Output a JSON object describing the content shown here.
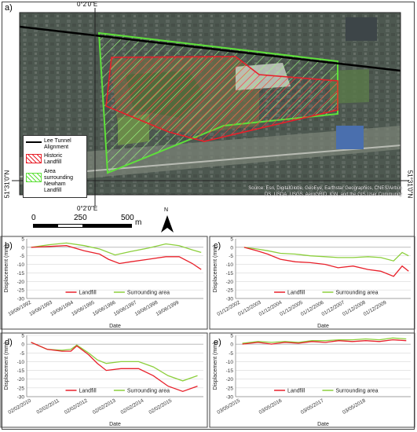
{
  "map": {
    "panel_label": "a)",
    "legend": [
      {
        "label": "Lee Tunnel Alignment",
        "lines": [
          "Lee Tunnel",
          "Alignment"
        ],
        "kind": "line",
        "color": "#000000"
      },
      {
        "label": "Historic Landfill",
        "lines": [
          "Historic",
          "Landfill"
        ],
        "kind": "hatch",
        "color": "#e8202a"
      },
      {
        "label": "Area surrounding Newham Landfill",
        "lines": [
          "Area",
          "surrounding",
          "Newham",
          "Landfill"
        ],
        "kind": "hatch",
        "color": "#5ee03a"
      }
    ],
    "source_lines": [
      "Source: Esri, DigitalGlobe, GeoEye, Earthstar Geographics, CNES/Airbus",
      "DS, USDA, USGS, AeroGRID, IGN, and the GIS User Community"
    ],
    "coord_top": "0°2'0\"E",
    "coord_bottom": "0°2'0\"E",
    "coord_left": "51°31'0\"N",
    "coord_right": "51°31'0\"N",
    "scale_ticks": [
      "0",
      "250",
      "500"
    ],
    "scale_unit": "m",
    "north_label": "N"
  },
  "chart_data": [
    {
      "panel_label": "b)",
      "type": "line",
      "xlabel": "Date",
      "ylabel": "Displacement (mm)",
      "ylim": [
        -30,
        5
      ],
      "yticks": [
        "5",
        "0",
        "-5",
        "-10",
        "-15",
        "-20",
        "-25",
        "-30"
      ],
      "xticks": [
        "19/06/1992",
        "19/06/1993",
        "19/06/1994",
        "19/06/1995",
        "19/06/1996",
        "19/06/1997",
        "19/06/1998",
        "19/06/1999"
      ],
      "xrange": [
        1992.0,
        2000.0
      ],
      "series": [
        {
          "name": "Landfill",
          "color": "#e8202a",
          "x": [
            1992.2,
            1993.0,
            1993.8,
            1994.6,
            1995.3,
            1995.7,
            1996.2,
            1996.7,
            1997.5,
            1998.3,
            1998.9,
            1999.5,
            1999.9
          ],
          "values": [
            0,
            0.5,
            1,
            -2,
            -4,
            -7,
            -9.5,
            -8.5,
            -7,
            -5.5,
            -5.5,
            -9.5,
            -13
          ]
        },
        {
          "name": "Surrounding area",
          "color": "#8ccf3c",
          "x": [
            1992.2,
            1993.0,
            1993.8,
            1994.6,
            1995.3,
            1996.0,
            1996.7,
            1997.5,
            1998.3,
            1998.9,
            1999.5,
            1999.9
          ],
          "values": [
            0,
            1.5,
            2.5,
            1,
            -1,
            -4.5,
            -2.5,
            -0.5,
            2,
            1,
            -1.5,
            -3
          ]
        }
      ]
    },
    {
      "panel_label": "c)",
      "type": "line",
      "xlabel": "Date",
      "ylabel": "Displacement (mm)",
      "ylim": [
        -30,
        5
      ],
      "yticks": [
        "5",
        "0",
        "-5",
        "-10",
        "-15",
        "-20",
        "-25",
        "-30"
      ],
      "xticks": [
        "01/12/2002",
        "01/12/2003",
        "01/12/2004",
        "01/12/2005",
        "01/12/2006",
        "01/12/2007",
        "01/12/2008",
        "01/12/2009"
      ],
      "xrange": [
        2002.5,
        2010.7
      ],
      "series": [
        {
          "name": "Landfill",
          "color": "#e8202a",
          "x": [
            2002.9,
            2003.5,
            2004.0,
            2004.6,
            2005.3,
            2006.0,
            2006.7,
            2007.3,
            2008.0,
            2008.7,
            2009.3,
            2009.9,
            2010.3,
            2010.6
          ],
          "values": [
            0,
            -2,
            -4,
            -7,
            -8.5,
            -9,
            -10,
            -12,
            -11,
            -13,
            -14,
            -17,
            -11,
            -14
          ]
        },
        {
          "name": "Surrounding area",
          "color": "#8ccf3c",
          "x": [
            2002.9,
            2003.5,
            2004.0,
            2004.6,
            2005.3,
            2006.0,
            2006.7,
            2007.3,
            2008.0,
            2008.7,
            2009.3,
            2009.9,
            2010.3,
            2010.6
          ],
          "values": [
            0,
            -1,
            -2,
            -3.5,
            -4,
            -5,
            -5.5,
            -6,
            -6,
            -5.5,
            -6,
            -8,
            -3,
            -5
          ]
        }
      ]
    },
    {
      "panel_label": "d)",
      "type": "line",
      "xlabel": "Date",
      "ylabel": "Displacement (mm)",
      "ylim": [
        -30,
        5
      ],
      "yticks": [
        "5",
        "0",
        "-5",
        "-10",
        "-15",
        "-20",
        "-25",
        "-30"
      ],
      "xticks": [
        "02/02/2010",
        "02/02/2011",
        "02/02/2012",
        "02/02/2013",
        "02/02/2014",
        "02/02/2015"
      ],
      "xrange": [
        2010.0,
        2016.0
      ],
      "series": [
        {
          "name": "Landfill",
          "color": "#e8202a",
          "x": [
            2010.15,
            2010.7,
            2011.2,
            2011.5,
            2011.7,
            2012.1,
            2012.4,
            2012.7,
            2013.2,
            2013.8,
            2014.3,
            2014.8,
            2015.3,
            2015.8
          ],
          "values": [
            1,
            -3,
            -4,
            -4,
            -1,
            -6,
            -11,
            -15,
            -14,
            -14,
            -18,
            -24,
            -27,
            -24
          ]
        },
        {
          "name": "Surrounding area",
          "color": "#8ccf3c",
          "x": [
            2010.15,
            2010.7,
            2011.2,
            2011.5,
            2011.7,
            2012.1,
            2012.4,
            2012.7,
            2013.2,
            2013.8,
            2014.3,
            2014.8,
            2015.3,
            2015.8
          ],
          "values": [
            1,
            -3,
            -3.5,
            -3,
            -0.5,
            -5,
            -9,
            -11,
            -10,
            -10,
            -13,
            -18,
            -21,
            -18
          ]
        }
      ]
    },
    {
      "panel_label": "e)",
      "type": "line",
      "xlabel": "Date",
      "ylabel": "Displacement (mm)",
      "ylim": [
        -30,
        5
      ],
      "yticks": [
        "5",
        "0",
        "-5",
        "-10",
        "-15",
        "-20",
        "-25",
        "-30"
      ],
      "xticks": [
        "03/05/2015",
        "03/05/2016",
        "03/05/2017",
        "03/05/2018"
      ],
      "xrange": [
        2015.2,
        2019.1
      ],
      "series": [
        {
          "name": "Landfill",
          "color": "#e8202a",
          "x": [
            2015.35,
            2015.7,
            2016.0,
            2016.3,
            2016.6,
            2016.9,
            2017.2,
            2017.5,
            2017.8,
            2018.1,
            2018.4,
            2018.7,
            2019.0
          ],
          "values": [
            0,
            1,
            0,
            1,
            0.5,
            1.5,
            1,
            2,
            1.5,
            2,
            1.5,
            2.5,
            2
          ]
        },
        {
          "name": "Surrounding area",
          "color": "#8ccf3c",
          "x": [
            2015.35,
            2015.7,
            2016.0,
            2016.3,
            2016.6,
            2016.9,
            2017.2,
            2017.5,
            2017.8,
            2018.1,
            2018.4,
            2018.7,
            2019.0
          ],
          "values": [
            0.5,
            1.5,
            1,
            1.5,
            1,
            2,
            2,
            2.5,
            2.5,
            3,
            2.5,
            3.5,
            3
          ]
        }
      ]
    }
  ]
}
